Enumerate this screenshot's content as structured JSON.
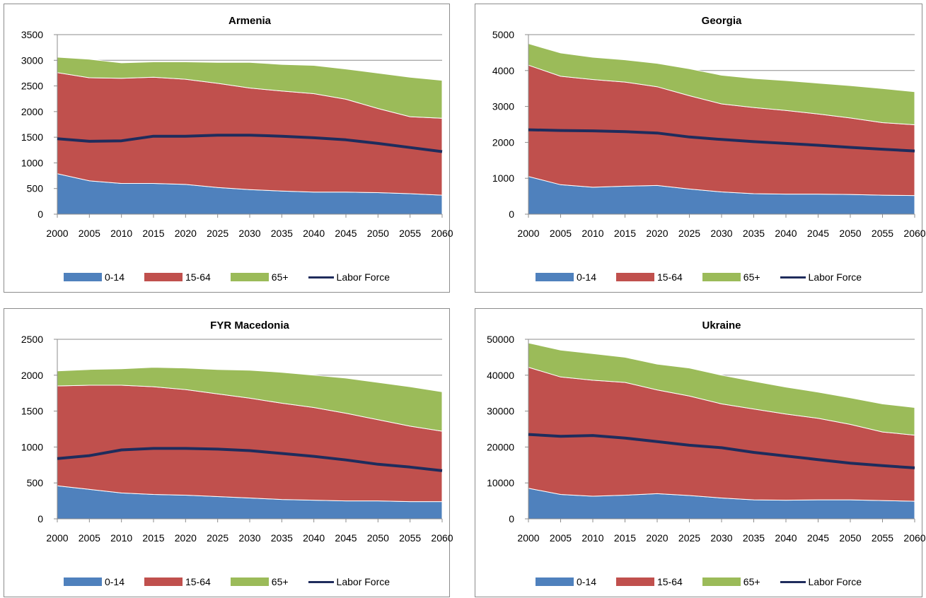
{
  "legend": {
    "items": [
      {
        "label": "0-14",
        "color": "#4F81BD",
        "kind": "area"
      },
      {
        "label": "15-64",
        "color": "#C0504D",
        "kind": "area"
      },
      {
        "label": "65+",
        "color": "#9BBB59",
        "kind": "area"
      },
      {
        "label": "Labor Force",
        "color": "#1F2C5C",
        "kind": "line"
      }
    ]
  },
  "chart_data": [
    {
      "type": "area",
      "title": "Armenia",
      "stacked": true,
      "x": [
        2000,
        2005,
        2010,
        2015,
        2020,
        2025,
        2030,
        2035,
        2040,
        2045,
        2050,
        2055,
        2060
      ],
      "xticks": [
        "2000",
        "2005",
        "2010",
        "2015",
        "2020",
        "2025",
        "2030",
        "2035",
        "2040",
        "2045",
        "2050",
        "2055",
        "2060"
      ],
      "yticks": [
        "0",
        "500",
        "1000",
        "1500",
        "2000",
        "2500",
        "3000",
        "3500"
      ],
      "ylim": [
        0,
        3500
      ],
      "series": [
        {
          "name": "0-14",
          "values": [
            790,
            650,
            600,
            600,
            580,
            520,
            480,
            450,
            430,
            430,
            420,
            400,
            370
          ]
        },
        {
          "name": "15-64",
          "values": [
            1970,
            2010,
            2050,
            2070,
            2050,
            2030,
            1980,
            1950,
            1920,
            1810,
            1640,
            1500,
            1500
          ]
        },
        {
          "name": "65+",
          "values": [
            300,
            360,
            300,
            300,
            340,
            410,
            500,
            520,
            550,
            590,
            690,
            770,
            740
          ]
        }
      ],
      "line": {
        "name": "Labor Force",
        "values": [
          1470,
          1420,
          1430,
          1520,
          1520,
          1540,
          1540,
          1520,
          1490,
          1450,
          1380,
          1300,
          1220
        ]
      }
    },
    {
      "type": "area",
      "title": "Georgia",
      "stacked": true,
      "x": [
        2000,
        2005,
        2010,
        2015,
        2020,
        2025,
        2030,
        2035,
        2040,
        2045,
        2050,
        2055,
        2060
      ],
      "xticks": [
        "2000",
        "2005",
        "2010",
        "2015",
        "2020",
        "2025",
        "2030",
        "2035",
        "2040",
        "2045",
        "2050",
        "2055",
        "2060"
      ],
      "yticks": [
        "0",
        "1000",
        "2000",
        "3000",
        "4000",
        "5000"
      ],
      "ylim": [
        0,
        5000
      ],
      "series": [
        {
          "name": "0-14",
          "values": [
            1050,
            820,
            750,
            780,
            800,
            700,
            620,
            570,
            560,
            560,
            550,
            530,
            520
          ]
        },
        {
          "name": "15-64",
          "values": [
            3100,
            3020,
            3000,
            2900,
            2750,
            2600,
            2450,
            2400,
            2330,
            2230,
            2130,
            2020,
            1970
          ]
        },
        {
          "name": "65+",
          "values": [
            600,
            650,
            620,
            620,
            650,
            750,
            800,
            810,
            830,
            860,
            900,
            950,
            920
          ]
        }
      ],
      "line": {
        "name": "Labor Force",
        "values": [
          2350,
          2330,
          2320,
          2300,
          2260,
          2150,
          2080,
          2020,
          1970,
          1920,
          1860,
          1810,
          1760
        ]
      }
    },
    {
      "type": "area",
      "title": "FYR Macedonia",
      "stacked": true,
      "x": [
        2000,
        2005,
        2010,
        2015,
        2020,
        2025,
        2030,
        2035,
        2040,
        2045,
        2050,
        2055,
        2060
      ],
      "xticks": [
        "2000",
        "2005",
        "2010",
        "2015",
        "2020",
        "2025",
        "2030",
        "2035",
        "2040",
        "2045",
        "2050",
        "2055",
        "2060"
      ],
      "yticks": [
        "0",
        "500",
        "1000",
        "1500",
        "2000",
        "2500"
      ],
      "ylim": [
        0,
        2500
      ],
      "series": [
        {
          "name": "0-14",
          "values": [
            460,
            410,
            360,
            340,
            330,
            310,
            290,
            270,
            260,
            250,
            250,
            240,
            240
          ]
        },
        {
          "name": "15-64",
          "values": [
            1390,
            1450,
            1500,
            1500,
            1470,
            1430,
            1390,
            1340,
            1290,
            1220,
            1130,
            1050,
            980
          ]
        },
        {
          "name": "65+",
          "values": [
            210,
            220,
            230,
            270,
            300,
            340,
            390,
            430,
            450,
            490,
            520,
            550,
            550
          ]
        }
      ],
      "line": {
        "name": "Labor Force",
        "values": [
          840,
          880,
          960,
          980,
          980,
          970,
          950,
          910,
          870,
          820,
          760,
          720,
          670
        ]
      }
    },
    {
      "type": "area",
      "title": "Ukraine",
      "stacked": true,
      "x": [
        2000,
        2005,
        2010,
        2015,
        2020,
        2025,
        2030,
        2035,
        2040,
        2045,
        2050,
        2055,
        2060
      ],
      "xticks": [
        "2000",
        "2005",
        "2010",
        "2015",
        "2020",
        "2025",
        "2030",
        "2035",
        "2040",
        "2045",
        "2050",
        "2055",
        "2060"
      ],
      "yticks": [
        "0",
        "10000",
        "20000",
        "30000",
        "40000",
        "50000"
      ],
      "ylim": [
        0,
        50000
      ],
      "series": [
        {
          "name": "0-14",
          "values": [
            8500,
            6800,
            6300,
            6600,
            7000,
            6500,
            5800,
            5300,
            5200,
            5300,
            5300,
            5100,
            4900
          ]
        },
        {
          "name": "15-64",
          "values": [
            33700,
            32700,
            32300,
            31400,
            28900,
            27700,
            26200,
            25300,
            24000,
            22700,
            21000,
            19100,
            18400
          ]
        },
        {
          "name": "65+",
          "values": [
            6800,
            7500,
            7400,
            7000,
            7200,
            7800,
            8000,
            7700,
            7500,
            7300,
            7400,
            7800,
            7700
          ]
        }
      ],
      "line": {
        "name": "Labor Force",
        "values": [
          23500,
          23000,
          23200,
          22500,
          21500,
          20500,
          19800,
          18500,
          17500,
          16500,
          15500,
          14800,
          14200
        ]
      }
    }
  ]
}
